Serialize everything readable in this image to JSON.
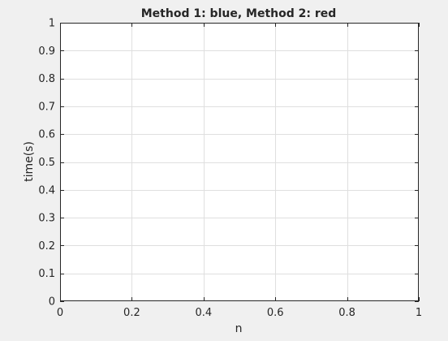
{
  "figure": {
    "background": "#f0f0f0"
  },
  "chart_data": {
    "type": "line",
    "title": "Method 1: blue, Method 2: red",
    "xlabel": "n",
    "ylabel": "time(s)",
    "xlim": [
      0,
      1
    ],
    "ylim": [
      0,
      1
    ],
    "x_ticks": [
      "0",
      "0.2",
      "0.4",
      "0.6",
      "0.8",
      "1"
    ],
    "x_tick_values": [
      0,
      0.2,
      0.4,
      0.6,
      0.8,
      1
    ],
    "y_ticks": [
      "0",
      "0.1",
      "0.2",
      "0.3",
      "0.4",
      "0.5",
      "0.6",
      "0.7",
      "0.8",
      "0.9",
      "1"
    ],
    "y_tick_values": [
      0,
      0.1,
      0.2,
      0.3,
      0.4,
      0.5,
      0.6,
      0.7,
      0.8,
      0.9,
      1
    ],
    "grid": true,
    "box": true,
    "series": [],
    "colors": {
      "axes_background": "#ffffff",
      "axis_line": "#262626",
      "grid": "#dfdfdf"
    }
  }
}
